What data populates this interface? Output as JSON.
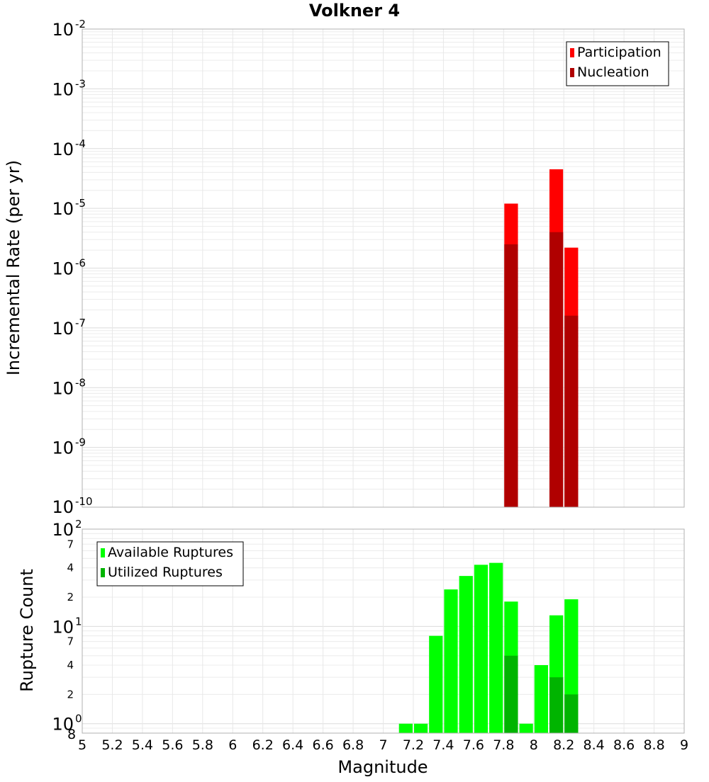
{
  "chart_data": {
    "title": "Volkner 4",
    "xlabel": "Magnitude",
    "xlim": [
      5,
      9
    ],
    "x_ticks": [
      "5",
      "5.2",
      "5.4",
      "5.6",
      "5.8",
      "6",
      "6.2",
      "6.4",
      "6.6",
      "6.8",
      "7",
      "7.2",
      "7.4",
      "7.6",
      "7.8",
      "8",
      "8.2",
      "8.4",
      "8.6",
      "8.8",
      "9"
    ],
    "x_tick_values": [
      5,
      5.2,
      5.4,
      5.6,
      5.8,
      6,
      6.2,
      6.4,
      6.6,
      6.8,
      7,
      7.2,
      7.4,
      7.6,
      7.8,
      8,
      8.2,
      8.4,
      8.6,
      8.8,
      9
    ],
    "bin_width": 0.1,
    "charts": [
      {
        "type": "bar",
        "yscale": "log",
        "ylabel": "Incremental Rate (per yr)",
        "ylim": [
          1e-10,
          0.01
        ],
        "decade_ticks": [
          {
            "base": "10",
            "exp": "-2",
            "value": 0.01
          },
          {
            "base": "10",
            "exp": "-3",
            "value": 0.001
          },
          {
            "base": "10",
            "exp": "-4",
            "value": 0.0001
          },
          {
            "base": "10",
            "exp": "-5",
            "value": 1e-05
          },
          {
            "base": "10",
            "exp": "-6",
            "value": 1e-06
          },
          {
            "base": "10",
            "exp": "-7",
            "value": 1e-07
          },
          {
            "base": "10",
            "exp": "-8",
            "value": 1e-08
          },
          {
            "base": "10",
            "exp": "-9",
            "value": 1e-09
          },
          {
            "base": "10",
            "exp": "-10",
            "value": 1e-10
          }
        ],
        "legend_position": "top-right",
        "series": [
          {
            "name": "Participation",
            "color": "#ff0000",
            "x": [
              7.85,
              8.15,
              8.25
            ],
            "values": [
              1.2e-05,
              4.5e-05,
              2.2e-06
            ]
          },
          {
            "name": "Nucleation",
            "color": "#b00000",
            "x": [
              7.85,
              8.15,
              8.25
            ],
            "values": [
              2.5e-06,
              4e-06,
              1.6e-07
            ]
          }
        ]
      },
      {
        "type": "bar",
        "yscale": "log",
        "ylabel": "Rupture Count",
        "ylim": [
          0.8,
          100
        ],
        "bottom_label": "8",
        "decade_ticks": [
          {
            "base": "10",
            "exp": "2",
            "value": 100
          },
          {
            "base": "10",
            "exp": "1",
            "value": 10
          },
          {
            "base": "10",
            "exp": "0",
            "value": 1
          }
        ],
        "minor_ticks": [
          {
            "label": "7",
            "value": 70
          },
          {
            "label": "4",
            "value": 40
          },
          {
            "label": "2",
            "value": 20
          },
          {
            "label": "7",
            "value": 7
          },
          {
            "label": "4",
            "value": 4
          },
          {
            "label": "2",
            "value": 2
          }
        ],
        "legend_position": "top-left",
        "series": [
          {
            "name": "Available Ruptures",
            "color": "#00ff00",
            "x": [
              7.15,
              7.25,
              7.35,
              7.45,
              7.55,
              7.65,
              7.75,
              7.85,
              7.95,
              8.05,
              8.15,
              8.25
            ],
            "values": [
              1,
              1,
              8,
              24,
              33,
              43,
              45,
              18,
              1,
              4,
              13,
              19
            ]
          },
          {
            "name": "Utilized Ruptures",
            "color": "#00b400",
            "x": [
              7.85,
              8.15,
              8.25
            ],
            "values": [
              5,
              3,
              2
            ]
          }
        ]
      }
    ]
  }
}
